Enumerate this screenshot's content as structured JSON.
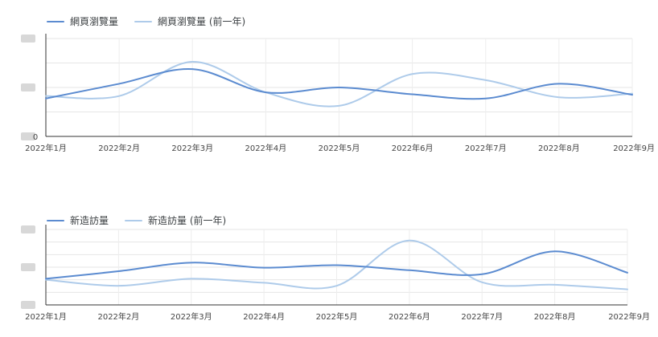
{
  "chart_data": [
    {
      "type": "line",
      "categories": [
        "2022年1月",
        "2022年2月",
        "2022年3月",
        "2022年4月",
        "2022年5月",
        "2022年6月",
        "2022年7月",
        "2022年8月",
        "2022年9月"
      ],
      "series": [
        {
          "name": "網頁瀏覽量",
          "color": "#5b8bd0",
          "values": [
            1.55,
            2.15,
            2.75,
            1.8,
            2.0,
            1.72,
            1.55,
            2.15,
            1.7
          ]
        },
        {
          "name": "網頁瀏覽量 (前一年)",
          "color": "#aecbea",
          "values": [
            1.65,
            1.65,
            3.05,
            1.8,
            1.25,
            2.55,
            2.3,
            1.6,
            1.75
          ]
        }
      ],
      "ylim": [
        0,
        4
      ],
      "y_ticks": [
        "0"
      ],
      "grid": true,
      "legend_position": "top-left"
    },
    {
      "type": "line",
      "categories": [
        "2022年1月",
        "2022年2月",
        "2022年3月",
        "2022年4月",
        "2022年5月",
        "2022年6月",
        "2022年7月",
        "2022年8月",
        "2022年9月"
      ],
      "series": [
        {
          "name": "新造訪量",
          "color": "#5b8bd0",
          "values": [
            1.04,
            1.34,
            1.68,
            1.48,
            1.58,
            1.38,
            1.22,
            2.13,
            1.28
          ]
        },
        {
          "name": "新造訪量 (前一年)",
          "color": "#aecbea",
          "values": [
            1.0,
            0.76,
            1.04,
            0.88,
            0.76,
            2.56,
            0.9,
            0.8,
            0.62
          ]
        }
      ],
      "ylim": [
        0,
        3
      ],
      "y_ticks": [],
      "grid": true,
      "legend_position": "top-left"
    }
  ]
}
